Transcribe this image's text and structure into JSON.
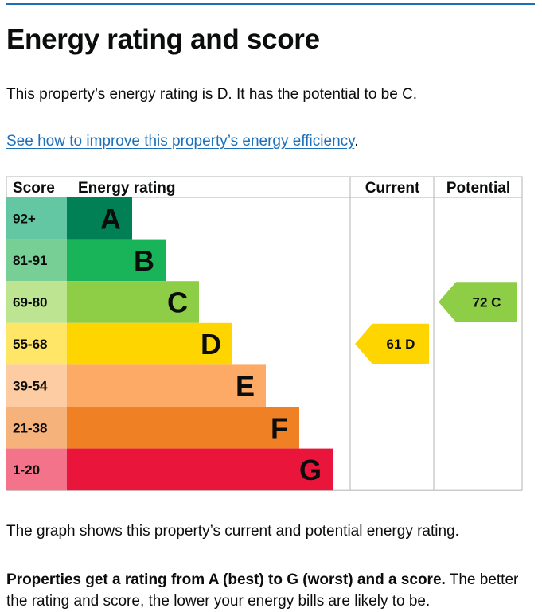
{
  "page": {
    "title": "Energy rating and score",
    "intro": "This property’s energy rating is D. It has the potential to be C.",
    "link_text": "See how to improve this property’s energy efficiency",
    "link_suffix": ".",
    "graph_caption": "The graph shows this property’s current and potential energy rating.",
    "footer_bold": "Properties get a rating from A (best) to G (worst) and a score.",
    "footer_rest": " The better the rating and score, the lower your energy bills are likely to be."
  },
  "chart_data": {
    "type": "bar",
    "headers": {
      "score": "Score",
      "rating": "Energy rating",
      "current": "Current",
      "potential": "Potential"
    },
    "bands": [
      {
        "score": "92+",
        "letter": "A",
        "color": "#008054",
        "score_bg": "#64c7a4"
      },
      {
        "score": "81-91",
        "letter": "B",
        "color": "#19b459",
        "score_bg": "#77cf96"
      },
      {
        "score": "69-80",
        "letter": "C",
        "color": "#8dce46",
        "score_bg": "#bde490"
      },
      {
        "score": "55-68",
        "letter": "D",
        "color": "#ffd500",
        "score_bg": "#ffe666"
      },
      {
        "score": "39-54",
        "letter": "E",
        "color": "#fcaa65",
        "score_bg": "#fdcca3"
      },
      {
        "score": "21-38",
        "letter": "F",
        "color": "#ef8023",
        "score_bg": "#f5b27b"
      },
      {
        "score": "1-20",
        "letter": "G",
        "color": "#e9153b",
        "score_bg": "#f3738a"
      }
    ],
    "current": {
      "score": 61,
      "letter": "D",
      "label": "61 D",
      "color": "#ffd500"
    },
    "potential": {
      "score": 72,
      "letter": "C",
      "label": "72 C",
      "color": "#8dce46"
    }
  }
}
